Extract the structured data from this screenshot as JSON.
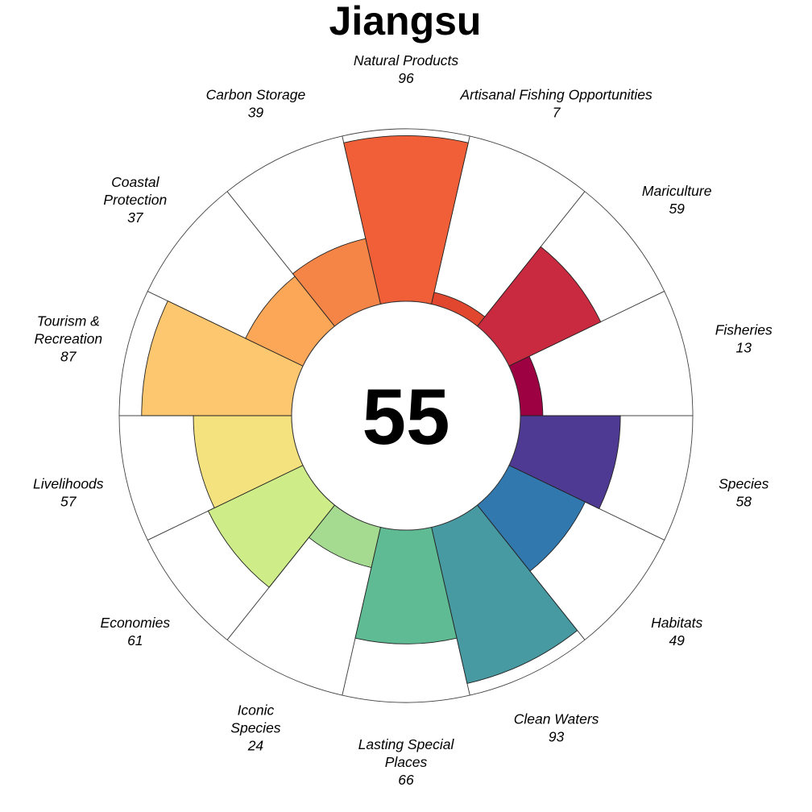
{
  "chart_data": {
    "type": "flower",
    "title": "Jiangsu",
    "center_score": "55",
    "ylim": [
      0,
      100
    ],
    "petals": [
      {
        "name": "Natural Products",
        "lines": [
          "Natural Products"
        ],
        "value": 96,
        "color": "#F05F38"
      },
      {
        "name": "Artisanal Fishing Opportunities",
        "lines": [
          "Artisanal Fishing Opportunities"
        ],
        "value": 7,
        "color": "#E1462E"
      },
      {
        "name": "Mariculture",
        "lines": [
          "Mariculture"
        ],
        "value": 59,
        "color": "#C92A40"
      },
      {
        "name": "Fisheries",
        "lines": [
          "Fisheries"
        ],
        "value": 13,
        "color": "#9E0142"
      },
      {
        "name": "Species",
        "lines": [
          "Species"
        ],
        "value": 58,
        "color": "#4E3A92"
      },
      {
        "name": "Habitats",
        "lines": [
          "Habitats"
        ],
        "value": 49,
        "color": "#3178AF"
      },
      {
        "name": "Clean Waters",
        "lines": [
          "Clean Waters"
        ],
        "value": 93,
        "color": "#489AA2"
      },
      {
        "name": "Lasting Special Places",
        "lines": [
          "Lasting Special",
          "Places"
        ],
        "value": 66,
        "color": "#5FBB93"
      },
      {
        "name": "Iconic Species",
        "lines": [
          "Iconic",
          "Species"
        ],
        "value": 24,
        "color": "#A5DA91"
      },
      {
        "name": "Economies",
        "lines": [
          "Economies"
        ],
        "value": 61,
        "color": "#CEEC88"
      },
      {
        "name": "Livelihoods",
        "lines": [
          "Livelihoods"
        ],
        "value": 57,
        "color": "#F4E27E"
      },
      {
        "name": "Tourism & Recreation",
        "lines": [
          "Tourism &",
          "Recreation"
        ],
        "value": 87,
        "color": "#FCC76E"
      },
      {
        "name": "Coastal Protection",
        "lines": [
          "Coastal",
          "Protection"
        ],
        "value": 37,
        "color": "#FCA757"
      },
      {
        "name": "Carbon Storage",
        "lines": [
          "Carbon Storage"
        ],
        "value": 39,
        "color": "#F58547"
      }
    ]
  }
}
